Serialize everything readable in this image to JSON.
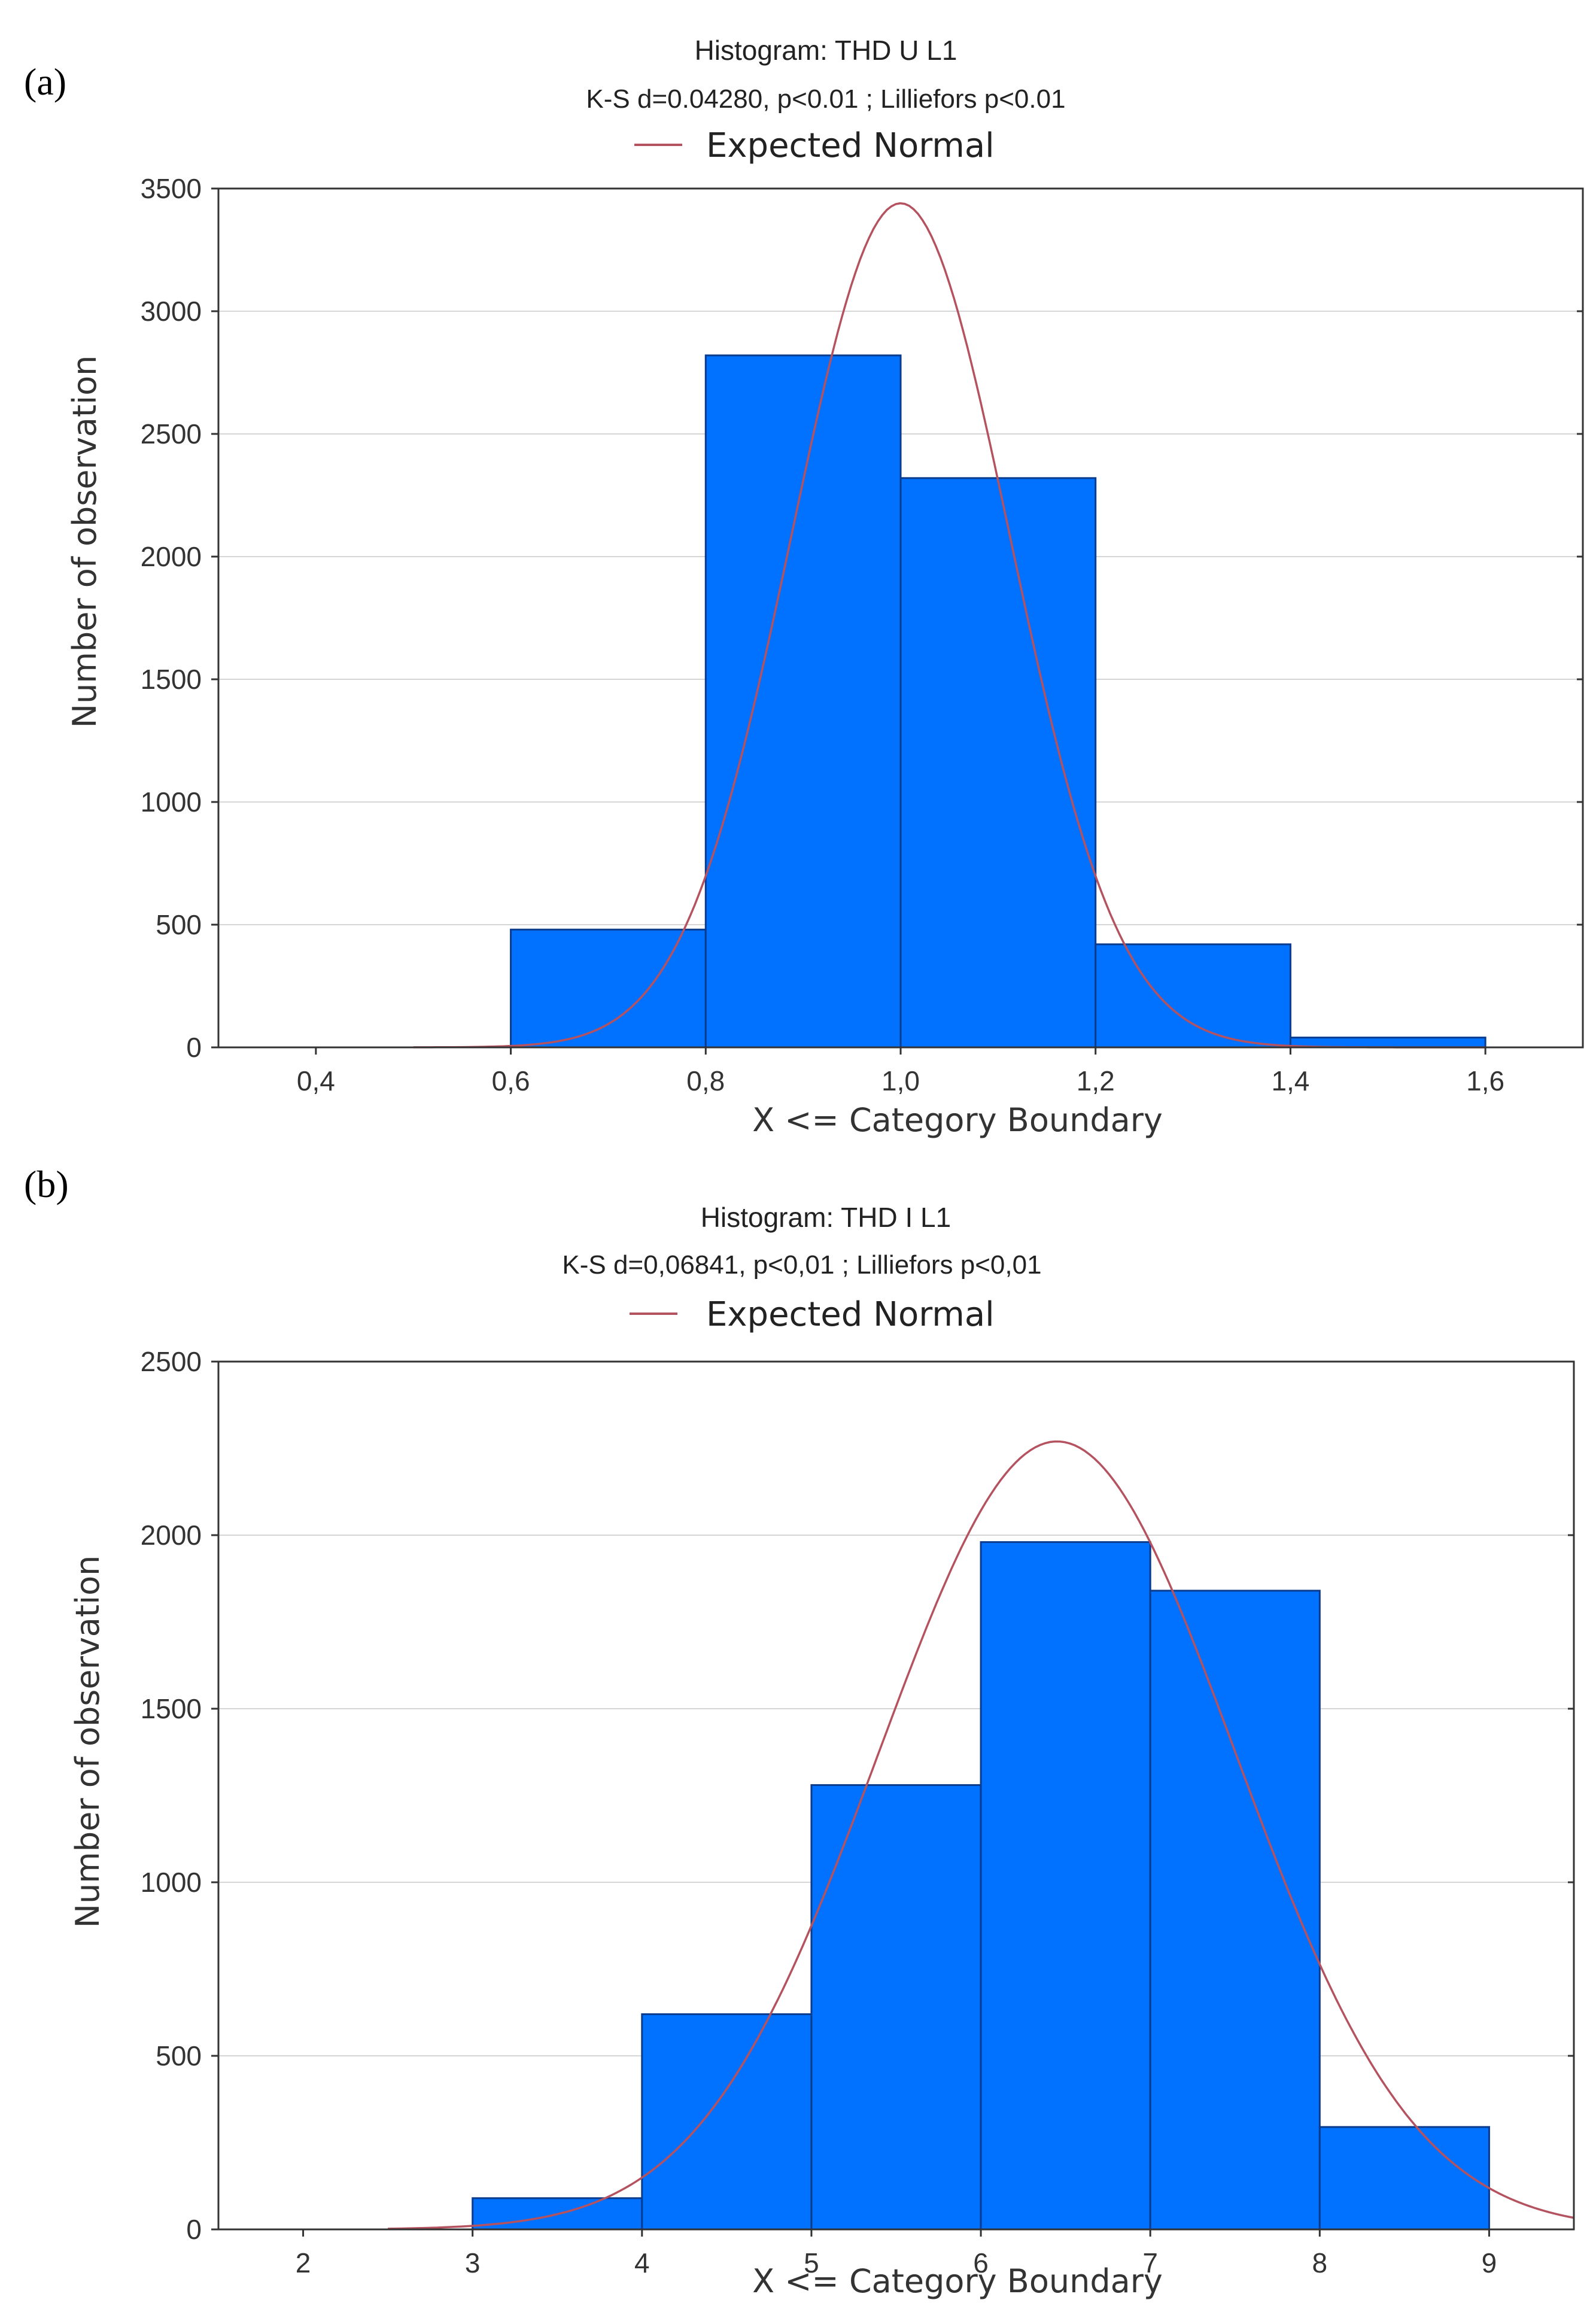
{
  "chart_data": [
    {
      "panel": "(a)",
      "type": "bar",
      "title": "Histogram: THD U L1",
      "subtitle": "K-S d=0.04280, p<0.01 ; Lilliefors p<0.01",
      "legend": "Expected Normal",
      "xlabel": "X <= Category Boundary",
      "ylabel": "Number of observation",
      "xlim": [
        0.3,
        1.7
      ],
      "ylim": [
        0,
        3500
      ],
      "xticks": [
        0.4,
        0.6,
        0.8,
        1.0,
        1.2,
        1.4,
        1.6
      ],
      "xtick_labels": [
        "0,4",
        "0,6",
        "0,8",
        "1,0",
        "1,2",
        "1,4",
        "1,6"
      ],
      "yticks": [
        0,
        500,
        1000,
        1500,
        2000,
        2500,
        3000,
        3500
      ],
      "ytick_labels": [
        "0",
        "500",
        "1000",
        "1500",
        "2000",
        "2500",
        "3000",
        "3500"
      ],
      "bins": [
        {
          "from": 0.6,
          "to": 0.8,
          "value": 480
        },
        {
          "from": 0.8,
          "to": 1.0,
          "value": 2820
        },
        {
          "from": 1.0,
          "to": 1.2,
          "value": 2320
        },
        {
          "from": 1.2,
          "to": 1.4,
          "value": 420
        },
        {
          "from": 1.4,
          "to": 1.6,
          "value": 40
        }
      ],
      "normal_curve": {
        "mean": 1.0,
        "sd": 0.112,
        "peak": 3440,
        "x_range": [
          0.5,
          1.6
        ]
      }
    },
    {
      "panel": "(b)",
      "type": "bar",
      "title": "Histogram: THD I L1",
      "subtitle": "K-S d=0,06841, p<0,01 ; Lilliefors p<0,01",
      "legend": "Expected Normal",
      "xlabel": "X <= Category Boundary",
      "ylabel": "Number of observation",
      "xlim": [
        1.5,
        9.5
      ],
      "ylim": [
        0,
        2500
      ],
      "xticks": [
        2,
        3,
        4,
        5,
        6,
        7,
        8,
        9
      ],
      "xtick_labels": [
        "2",
        "3",
        "4",
        "5",
        "6",
        "7",
        "8",
        "9"
      ],
      "yticks": [
        0,
        500,
        1000,
        1500,
        2000,
        2500
      ],
      "ytick_labels": [
        "0",
        "500",
        "1000",
        "1500",
        "2000",
        "2500"
      ],
      "bins": [
        {
          "from": 3,
          "to": 4,
          "value": 90
        },
        {
          "from": 4,
          "to": 5,
          "value": 620
        },
        {
          "from": 5,
          "to": 6,
          "value": 1280
        },
        {
          "from": 6,
          "to": 7,
          "value": 1980
        },
        {
          "from": 7,
          "to": 8,
          "value": 1840
        },
        {
          "from": 8,
          "to": 9,
          "value": 295
        }
      ],
      "normal_curve": {
        "mean": 6.45,
        "sd": 1.05,
        "peak": 2270,
        "x_range": [
          2.5,
          9.5
        ]
      }
    }
  ]
}
